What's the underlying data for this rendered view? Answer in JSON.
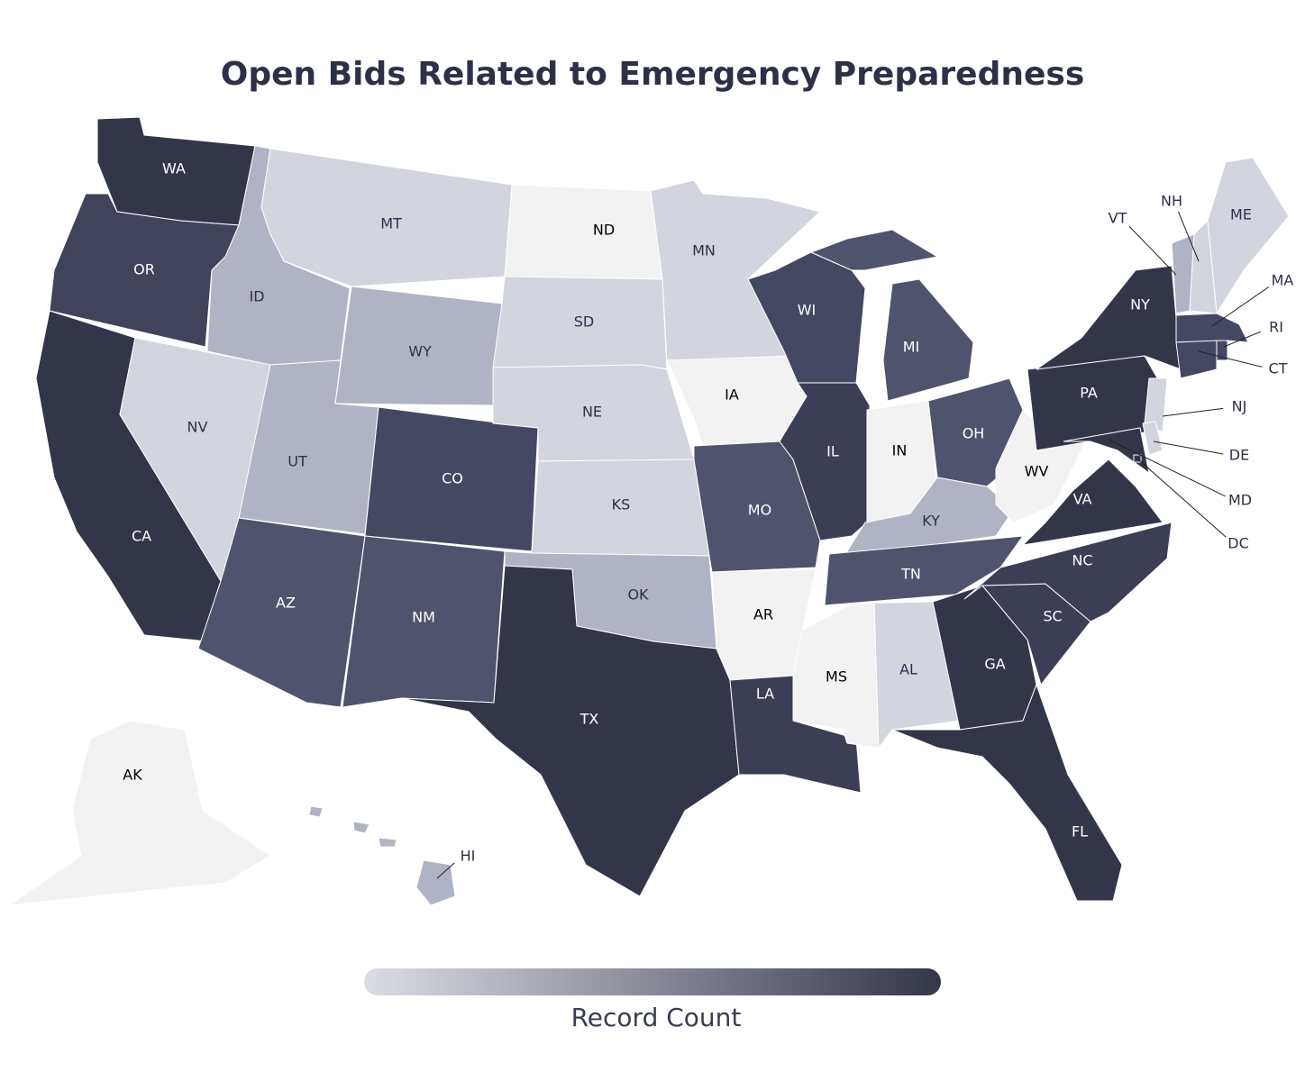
{
  "title": "Open Bids Related to Emergency Preparedness",
  "states": [
    {
      "code": "WA",
      "color": "#333649"
    },
    {
      "code": "OR",
      "color": "#40435b"
    },
    {
      "code": "CA",
      "color": "#333649"
    },
    {
      "code": "NV",
      "color": "#d2d4de"
    },
    {
      "code": "ID",
      "color": "#b0b3c3"
    },
    {
      "code": "MT",
      "color": "#d2d4de"
    },
    {
      "code": "WY",
      "color": "#b0b3c3"
    },
    {
      "code": "UT",
      "color": "#b0b3c3"
    },
    {
      "code": "CO",
      "color": "#444862"
    },
    {
      "code": "AZ",
      "color": "#50536e"
    },
    {
      "code": "NM",
      "color": "#50536e"
    },
    {
      "code": "ND",
      "color": "#f2f2f2"
    },
    {
      "code": "SD",
      "color": "#d2d4de"
    },
    {
      "code": "NE",
      "color": "#d2d4de"
    },
    {
      "code": "KS",
      "color": "#d2d4de"
    },
    {
      "code": "OK",
      "color": "#b0b3c3"
    },
    {
      "code": "TX",
      "color": "#333649"
    },
    {
      "code": "MN",
      "color": "#d2d4de"
    },
    {
      "code": "IA",
      "color": "#f2f2f2"
    },
    {
      "code": "MO",
      "color": "#50536e"
    },
    {
      "code": "AR",
      "color": "#f2f2f2"
    },
    {
      "code": "LA",
      "color": "#3b3e55"
    },
    {
      "code": "WI",
      "color": "#444862"
    },
    {
      "code": "IL",
      "color": "#3b3e55"
    },
    {
      "code": "MI",
      "color": "#50536e"
    },
    {
      "code": "IN",
      "color": "#f2f2f2"
    },
    {
      "code": "OH",
      "color": "#50536e"
    },
    {
      "code": "KY",
      "color": "#b0b3c3"
    },
    {
      "code": "TN",
      "color": "#50536e"
    },
    {
      "code": "MS",
      "color": "#f2f2f2"
    },
    {
      "code": "AL",
      "color": "#d2d4de"
    },
    {
      "code": "GA",
      "color": "#333649"
    },
    {
      "code": "FL",
      "color": "#333649"
    },
    {
      "code": "SC",
      "color": "#3b3e55"
    },
    {
      "code": "NC",
      "color": "#3b3e55"
    },
    {
      "code": "VA",
      "color": "#333649"
    },
    {
      "code": "WV",
      "color": "#f2f2f2"
    },
    {
      "code": "PA",
      "color": "#333649"
    },
    {
      "code": "NY",
      "color": "#333649"
    },
    {
      "code": "ME",
      "color": "#d2d4de"
    },
    {
      "code": "AK",
      "color": "#f2f2f2"
    },
    {
      "code": "HI",
      "color": "#b0b3c3"
    },
    {
      "code": "VT",
      "color": "#b0b3c3"
    },
    {
      "code": "NH",
      "color": "#d2d4de"
    },
    {
      "code": "MA",
      "color": "#444862"
    },
    {
      "code": "RI",
      "color": "#444862"
    },
    {
      "code": "CT",
      "color": "#444862"
    },
    {
      "code": "NJ",
      "color": "#d2d4de"
    },
    {
      "code": "DE",
      "color": "#d2d4de"
    },
    {
      "code": "MD",
      "color": "#333649"
    },
    {
      "code": "DC",
      "color": "#333649"
    }
  ],
  "legend": {
    "label": "Record Count",
    "colors": [
      "#dcdde4",
      "#333649"
    ]
  }
}
